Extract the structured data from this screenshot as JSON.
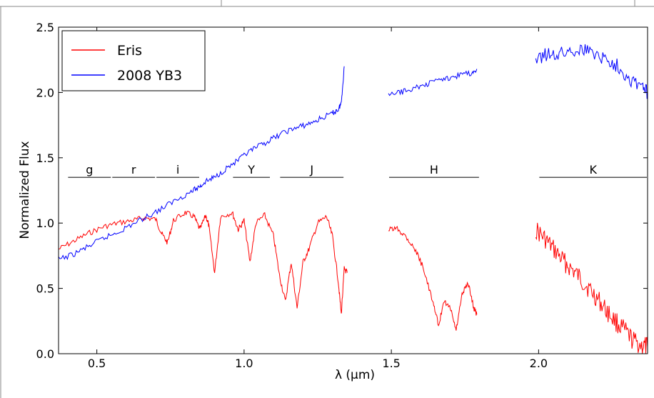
{
  "chart_data": {
    "type": "line",
    "xlabel": "λ (μm)",
    "ylabel": "Normalized Flux",
    "xlim": [
      0.37,
      2.37
    ],
    "ylim": [
      0.0,
      2.5
    ],
    "xticks": [
      "0.5",
      "1.0",
      "1.5",
      "2.0"
    ],
    "xtick_values": [
      0.5,
      1.0,
      1.5,
      2.0
    ],
    "yticks": [
      "0.0",
      "0.5",
      "1.0",
      "1.5",
      "2.0",
      "2.5"
    ],
    "ytick_values": [
      0.0,
      0.5,
      1.0,
      1.5,
      2.0,
      2.5
    ],
    "legend_position": "top-left",
    "series": [
      {
        "name": "Eris",
        "color": "#ff0000",
        "segments": [
          [
            [
              0.37,
              0.8
            ],
            [
              0.42,
              0.86
            ],
            [
              0.47,
              0.92
            ],
            [
              0.52,
              0.97
            ],
            [
              0.57,
              1.0
            ],
            [
              0.62,
              1.02
            ],
            [
              0.66,
              1.04
            ],
            [
              0.7,
              1.03
            ],
            [
              0.72,
              0.92
            ],
            [
              0.74,
              0.85
            ],
            [
              0.76,
              1.02
            ],
            [
              0.8,
              1.08
            ],
            [
              0.83,
              1.05
            ],
            [
              0.85,
              0.95
            ],
            [
              0.87,
              1.06
            ],
            [
              0.88,
              0.98
            ],
            [
              0.9,
              0.62
            ],
            [
              0.92,
              1.05
            ],
            [
              0.96,
              1.08
            ],
            [
              0.98,
              0.95
            ],
            [
              1.0,
              1.02
            ],
            [
              1.02,
              0.7
            ],
            [
              1.04,
              1.0
            ],
            [
              1.07,
              1.06
            ],
            [
              1.1,
              0.9
            ],
            [
              1.12,
              0.6
            ],
            [
              1.14,
              0.4
            ],
            [
              1.16,
              0.7
            ],
            [
              1.18,
              0.35
            ],
            [
              1.2,
              0.7
            ],
            [
              1.22,
              0.8
            ],
            [
              1.25,
              1.0
            ],
            [
              1.28,
              1.05
            ],
            [
              1.3,
              0.9
            ],
            [
              1.32,
              0.55
            ],
            [
              1.33,
              0.3
            ],
            [
              1.34,
              0.65
            ],
            [
              1.35,
              0.62
            ]
          ],
          [
            [
              1.49,
              0.95
            ],
            [
              1.52,
              0.96
            ],
            [
              1.55,
              0.9
            ],
            [
              1.58,
              0.8
            ],
            [
              1.61,
              0.65
            ],
            [
              1.64,
              0.4
            ],
            [
              1.66,
              0.22
            ],
            [
              1.68,
              0.4
            ],
            [
              1.7,
              0.35
            ],
            [
              1.72,
              0.18
            ],
            [
              1.74,
              0.45
            ],
            [
              1.76,
              0.55
            ],
            [
              1.78,
              0.35
            ],
            [
              1.79,
              0.3
            ]
          ],
          [
            [
              1.99,
              0.95
            ],
            [
              2.02,
              0.88
            ],
            [
              2.05,
              0.8
            ],
            [
              2.08,
              0.72
            ],
            [
              2.11,
              0.65
            ],
            [
              2.14,
              0.58
            ],
            [
              2.17,
              0.5
            ],
            [
              2.2,
              0.42
            ],
            [
              2.23,
              0.33
            ],
            [
              2.26,
              0.25
            ],
            [
              2.29,
              0.18
            ],
            [
              2.32,
              0.1
            ],
            [
              2.35,
              0.06
            ],
            [
              2.37,
              0.05
            ]
          ]
        ]
      },
      {
        "name": "2008 YB3",
        "color": "#0000ff",
        "segments": [
          [
            [
              0.37,
              0.72
            ],
            [
              0.42,
              0.76
            ],
            [
              0.47,
              0.82
            ],
            [
              0.52,
              0.88
            ],
            [
              0.57,
              0.93
            ],
            [
              0.62,
              0.99
            ],
            [
              0.67,
              1.05
            ],
            [
              0.72,
              1.11
            ],
            [
              0.77,
              1.18
            ],
            [
              0.82,
              1.24
            ],
            [
              0.85,
              1.28
            ],
            [
              0.87,
              1.32
            ],
            [
              0.9,
              1.35
            ],
            [
              0.94,
              1.42
            ],
            [
              0.98,
              1.48
            ],
            [
              1.02,
              1.55
            ],
            [
              1.06,
              1.6
            ],
            [
              1.1,
              1.65
            ],
            [
              1.14,
              1.7
            ],
            [
              1.18,
              1.73
            ],
            [
              1.22,
              1.76
            ],
            [
              1.26,
              1.8
            ],
            [
              1.3,
              1.84
            ],
            [
              1.32,
              1.87
            ],
            [
              1.33,
              1.92
            ],
            [
              1.34,
              2.2
            ]
          ],
          [
            [
              1.49,
              1.98
            ],
            [
              1.53,
              2.0
            ],
            [
              1.57,
              2.03
            ],
            [
              1.61,
              2.05
            ],
            [
              1.65,
              2.09
            ],
            [
              1.69,
              2.11
            ],
            [
              1.73,
              2.13
            ],
            [
              1.77,
              2.15
            ],
            [
              1.79,
              2.18
            ]
          ],
          [
            [
              1.99,
              2.25
            ],
            [
              2.03,
              2.3
            ],
            [
              2.07,
              2.29
            ],
            [
              2.11,
              2.32
            ],
            [
              2.15,
              2.33
            ],
            [
              2.19,
              2.3
            ],
            [
              2.23,
              2.25
            ],
            [
              2.27,
              2.2
            ],
            [
              2.31,
              2.1
            ],
            [
              2.35,
              2.05
            ],
            [
              2.37,
              2.0
            ]
          ]
        ]
      }
    ],
    "bands": [
      {
        "label": "g",
        "x0": 0.4,
        "x1": 0.55
      },
      {
        "label": "r",
        "x0": 0.55,
        "x1": 0.7
      },
      {
        "label": "i",
        "x0": 0.7,
        "x1": 0.85
      },
      {
        "label": "Y",
        "x0": 0.96,
        "x1": 1.09
      },
      {
        "label": "J",
        "x0": 1.12,
        "x1": 1.34
      },
      {
        "label": "H",
        "x0": 1.49,
        "x1": 1.8
      },
      {
        "label": "K",
        "x0": 2.0,
        "x1": 2.37
      }
    ],
    "band_level": 1.35
  }
}
